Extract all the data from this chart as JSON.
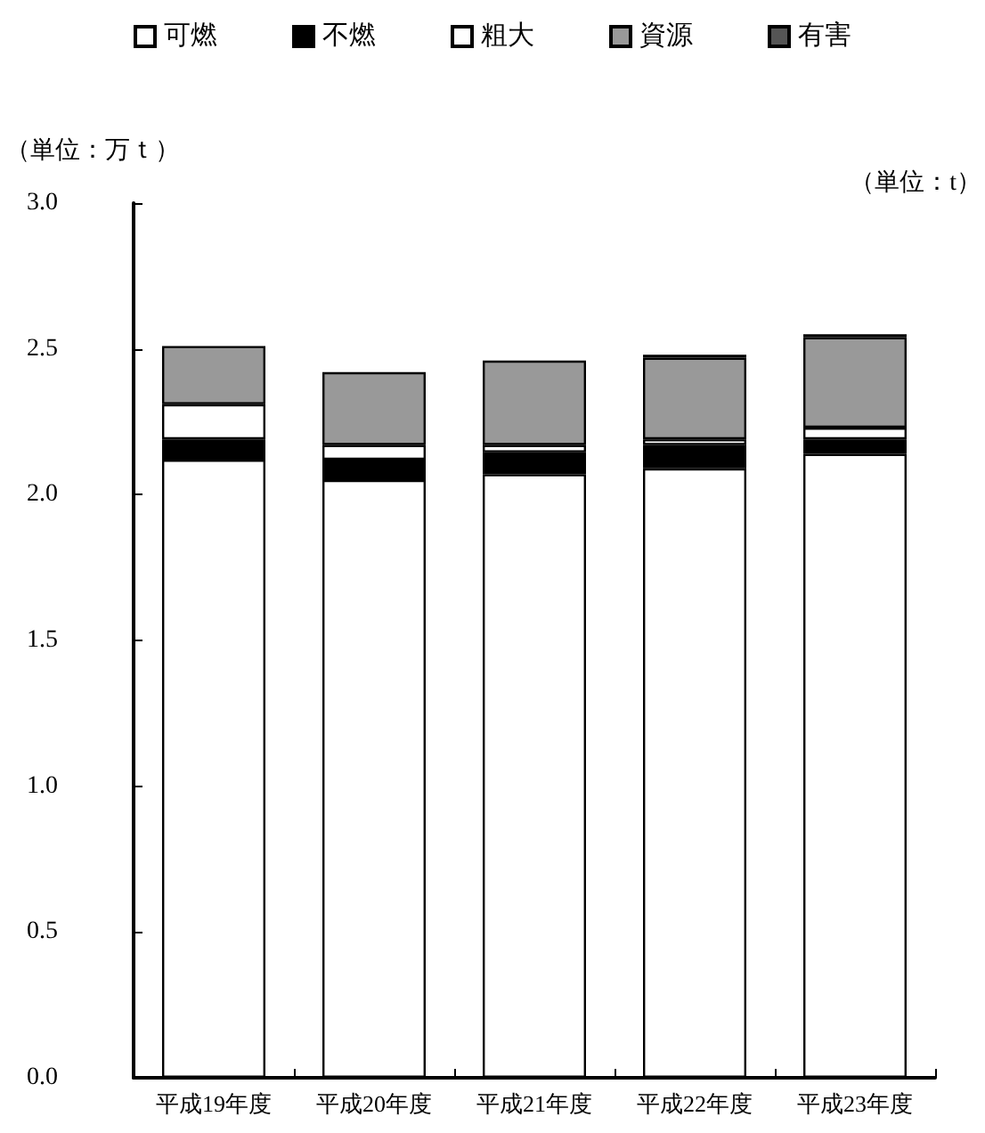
{
  "chart_data": {
    "type": "bar",
    "stacked": true,
    "ylabel": "（単位：万ｔ）",
    "annotations": [
      "（単位：t）"
    ],
    "categories": [
      "平成19年度",
      "平成20年度",
      "平成21年度",
      "平成22年度",
      "平成23年度"
    ],
    "series": [
      {
        "name": "可燃",
        "color": "#ffffff",
        "values": [
          2.12,
          2.05,
          2.07,
          2.09,
          2.14
        ]
      },
      {
        "name": "不燃",
        "color": "#000000",
        "values": [
          0.07,
          0.07,
          0.075,
          0.08,
          0.05
        ]
      },
      {
        "name": "粗大",
        "color": "#ffffff",
        "values": [
          0.12,
          0.05,
          0.025,
          0.02,
          0.04
        ]
      },
      {
        "name": "資源",
        "color": "#999999",
        "values": [
          0.2,
          0.25,
          0.29,
          0.28,
          0.31
        ]
      },
      {
        "name": "有害",
        "color": "#555555",
        "values": [
          0,
          0,
          0,
          0.01,
          0.01
        ]
      }
    ],
    "ylim": [
      0,
      3
    ],
    "yticks": [
      {
        "value": 0,
        "label": "0.0"
      },
      {
        "value": 0.5,
        "label": "0.5"
      },
      {
        "value": 1,
        "label": "1.0"
      },
      {
        "value": 1.5,
        "label": "1.5"
      },
      {
        "value": 2,
        "label": "2.0"
      },
      {
        "value": 2.5,
        "label": "2.5"
      },
      {
        "value": 3,
        "label": "3.0"
      }
    ],
    "grid": false,
    "legend": "top"
  }
}
